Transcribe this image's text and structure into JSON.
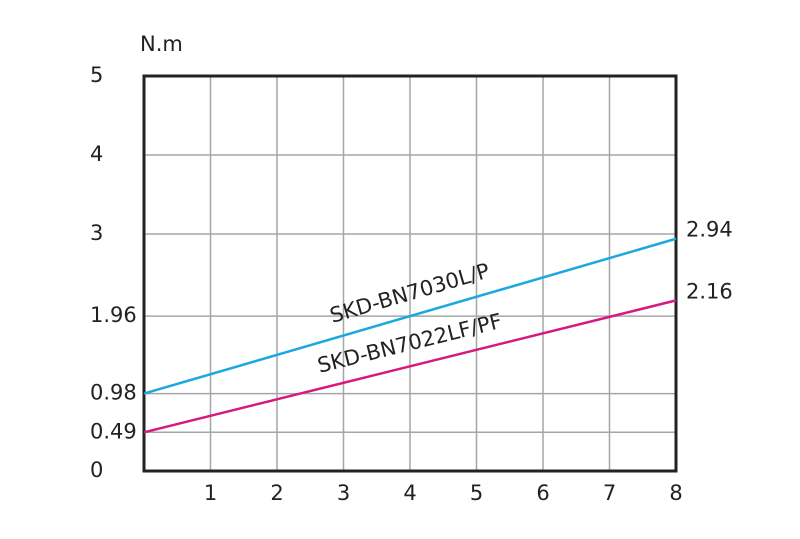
{
  "chart_data": {
    "type": "line",
    "y_label": "N.m",
    "x": [
      0,
      8
    ],
    "xlim": [
      0,
      8
    ],
    "xticks": [
      1,
      2,
      3,
      4,
      5,
      6,
      7,
      8
    ],
    "ylim": [
      0,
      5
    ],
    "yticks": [
      0,
      0.49,
      0.98,
      1.96,
      3,
      4,
      5
    ],
    "grid": true,
    "series": [
      {
        "name": "SKD-BN7030L/P",
        "color": "#1ba8e0",
        "values": [
          0.98,
          2.94
        ]
      },
      {
        "name": "SKD-BN7022LF/PF",
        "color": "#d6197f",
        "values": [
          0.49,
          2.16
        ]
      }
    ]
  }
}
